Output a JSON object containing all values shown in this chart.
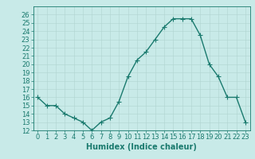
{
  "x": [
    0,
    1,
    2,
    3,
    4,
    5,
    6,
    7,
    8,
    9,
    10,
    11,
    12,
    13,
    14,
    15,
    16,
    17,
    18,
    19,
    20,
    21,
    22,
    23
  ],
  "y": [
    16,
    15,
    15,
    14,
    13.5,
    13,
    12,
    13,
    13.5,
    15.5,
    18.5,
    20.5,
    21.5,
    23,
    24.5,
    25.5,
    25.5,
    25.5,
    23.5,
    20,
    18.5,
    16,
    16,
    13
  ],
  "line_color": "#1a7a6e",
  "marker_color": "#1a7a6e",
  "bg_color": "#c8eae8",
  "grid_color": "#b0d4d0",
  "xlabel": "Humidex (Indice chaleur)",
  "xlabel_fontsize": 7,
  "tick_fontsize": 6,
  "ylim": [
    12,
    27
  ],
  "xlim": [
    -0.5,
    23.5
  ],
  "yticks": [
    12,
    13,
    14,
    15,
    16,
    17,
    18,
    19,
    20,
    21,
    22,
    23,
    24,
    25,
    26
  ],
  "xticks": [
    0,
    1,
    2,
    3,
    4,
    5,
    6,
    7,
    8,
    9,
    10,
    11,
    12,
    13,
    14,
    15,
    16,
    17,
    18,
    19,
    20,
    21,
    22,
    23
  ],
  "line_width": 1.0,
  "marker_size": 2.0
}
